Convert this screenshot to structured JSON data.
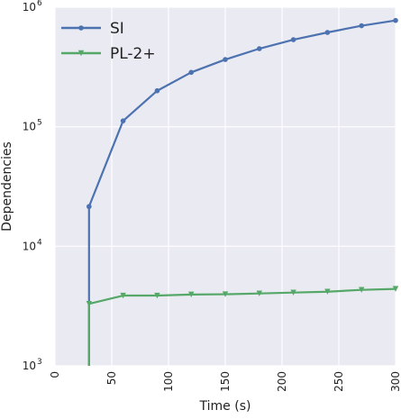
{
  "chart_data": {
    "type": "line",
    "title": "",
    "xlabel": "Time (s)",
    "ylabel": "Dependencies",
    "xlim": [
      0,
      300
    ],
    "ylim": [
      1000,
      1000000
    ],
    "yscale": "log",
    "x_ticks": [
      0,
      50,
      100,
      150,
      200,
      250,
      300
    ],
    "x_tick_labels": [
      "0",
      "50",
      "100",
      "150",
      "200",
      "250",
      "300"
    ],
    "y_ticks": [
      1000,
      10000,
      100000,
      1000000
    ],
    "y_tick_labels": [
      {
        "base": "10",
        "exp": "3"
      },
      {
        "base": "10",
        "exp": "4"
      },
      {
        "base": "10",
        "exp": "5"
      },
      {
        "base": "10",
        "exp": "6"
      }
    ],
    "grid": true,
    "legend_position": "top-left",
    "background": "#eaeaf2",
    "series": [
      {
        "name": "SI",
        "color": "#4c72b0",
        "marker": "circle",
        "points": [
          [
            30,
            1000
          ],
          [
            30,
            21500
          ],
          [
            60,
            112000
          ],
          [
            90,
            200000
          ],
          [
            120,
            285000
          ],
          [
            150,
            365000
          ],
          [
            180,
            450000
          ],
          [
            210,
            535000
          ],
          [
            240,
            615000
          ],
          [
            270,
            700000
          ],
          [
            300,
            775000
          ]
        ]
      },
      {
        "name": "PL-2+",
        "color": "#55a868",
        "marker": "triangle-down",
        "points": [
          [
            30,
            1000
          ],
          [
            30,
            3300
          ],
          [
            60,
            3870
          ],
          [
            90,
            3870
          ],
          [
            120,
            3950
          ],
          [
            150,
            3970
          ],
          [
            180,
            4030
          ],
          [
            210,
            4100
          ],
          [
            240,
            4170
          ],
          [
            270,
            4320
          ],
          [
            300,
            4400
          ]
        ]
      }
    ]
  }
}
